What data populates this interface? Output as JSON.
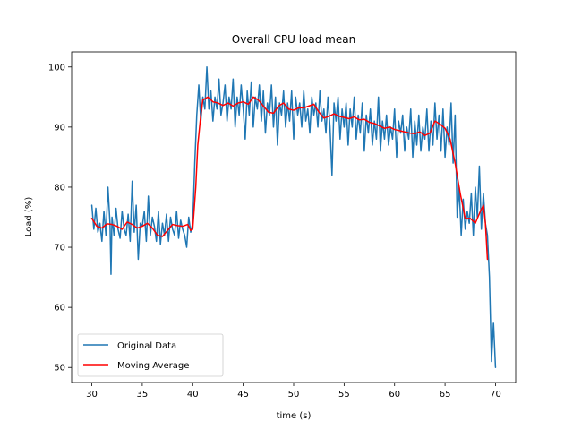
{
  "chart_data": {
    "type": "line",
    "title": "Overall CPU load mean",
    "xlabel": "time (s)",
    "ylabel": "Load (%)",
    "xlim": [
      28.0,
      72.0
    ],
    "ylim": [
      47.5,
      102.5
    ],
    "xticks": [
      30,
      35,
      40,
      45,
      50,
      55,
      60,
      65,
      70
    ],
    "yticks": [
      50,
      60,
      70,
      80,
      90,
      100
    ],
    "grid": false,
    "legend_position": "lower-left",
    "series": [
      {
        "name": "Original Data",
        "color": "#1f77b4",
        "x": [
          30.0,
          30.2,
          30.4,
          30.6,
          30.8,
          31.0,
          31.2,
          31.4,
          31.6,
          31.8,
          31.9,
          32.0,
          32.2,
          32.4,
          32.6,
          32.8,
          33.0,
          33.2,
          33.4,
          33.6,
          33.8,
          34.0,
          34.2,
          34.4,
          34.6,
          34.8,
          35.0,
          35.2,
          35.4,
          35.6,
          35.8,
          36.0,
          36.2,
          36.4,
          36.6,
          36.8,
          37.0,
          37.2,
          37.4,
          37.6,
          37.8,
          38.0,
          38.2,
          38.4,
          38.6,
          38.8,
          39.0,
          39.2,
          39.4,
          39.6,
          39.8,
          40.0,
          40.2,
          40.4,
          40.6,
          40.8,
          41.0,
          41.2,
          41.4,
          41.6,
          41.8,
          42.0,
          42.2,
          42.4,
          42.6,
          42.8,
          43.0,
          43.2,
          43.4,
          43.6,
          43.8,
          44.0,
          44.2,
          44.4,
          44.6,
          44.8,
          45.0,
          45.2,
          45.4,
          45.6,
          45.8,
          46.0,
          46.2,
          46.4,
          46.6,
          46.8,
          47.0,
          47.2,
          47.4,
          47.6,
          47.8,
          48.0,
          48.2,
          48.4,
          48.6,
          48.8,
          49.0,
          49.2,
          49.4,
          49.6,
          49.8,
          50.0,
          50.2,
          50.4,
          50.6,
          50.8,
          51.0,
          51.2,
          51.4,
          51.6,
          51.8,
          52.0,
          52.2,
          52.4,
          52.6,
          52.8,
          53.0,
          53.2,
          53.4,
          53.6,
          53.8,
          54.0,
          54.2,
          54.4,
          54.6,
          54.8,
          55.0,
          55.2,
          55.4,
          55.6,
          55.8,
          56.0,
          56.2,
          56.4,
          56.6,
          56.8,
          57.0,
          57.2,
          57.4,
          57.6,
          57.8,
          58.0,
          58.2,
          58.4,
          58.6,
          58.8,
          59.0,
          59.2,
          59.4,
          59.6,
          59.8,
          60.0,
          60.2,
          60.4,
          60.6,
          60.8,
          61.0,
          61.2,
          61.4,
          61.6,
          61.8,
          62.0,
          62.2,
          62.4,
          62.6,
          62.8,
          63.0,
          63.2,
          63.4,
          63.6,
          63.8,
          64.0,
          64.2,
          64.4,
          64.6,
          64.8,
          65.0,
          65.2,
          65.4,
          65.6,
          65.8,
          66.0,
          66.2,
          66.4,
          66.6,
          66.8,
          67.0,
          67.2,
          67.4,
          67.6,
          67.8,
          68.0,
          68.2,
          68.4,
          68.6,
          68.8,
          69.0,
          69.2,
          69.4,
          69.6,
          69.8,
          70.0
        ],
        "y": [
          77.0,
          73.0,
          76.5,
          72.5,
          74.0,
          71.0,
          76.0,
          72.0,
          80.0,
          74.0,
          65.5,
          75.0,
          72.0,
          76.5,
          73.0,
          71.5,
          76.0,
          73.0,
          72.0,
          75.5,
          71.0,
          81.0,
          72.5,
          77.0,
          68.0,
          74.0,
          73.5,
          76.0,
          71.0,
          78.5,
          72.0,
          75.0,
          73.5,
          71.0,
          76.0,
          70.5,
          74.0,
          72.0,
          75.5,
          71.0,
          75.0,
          73.0,
          72.0,
          76.0,
          71.5,
          74.5,
          73.0,
          72.0,
          70.0,
          75.0,
          72.5,
          74.0,
          84.0,
          92.0,
          97.0,
          91.0,
          95.0,
          93.0,
          100.0,
          93.0,
          96.0,
          91.0,
          95.0,
          93.0,
          98.0,
          92.0,
          94.0,
          97.0,
          91.0,
          95.0,
          93.0,
          98.0,
          90.0,
          95.0,
          92.0,
          97.0,
          93.0,
          88.0,
          96.0,
          92.0,
          97.5,
          90.0,
          95.0,
          93.0,
          97.0,
          91.0,
          96.0,
          89.0,
          94.0,
          92.0,
          97.0,
          90.0,
          95.0,
          87.0,
          94.0,
          92.0,
          96.0,
          90.0,
          94.0,
          91.0,
          96.0,
          88.0,
          95.0,
          92.0,
          94.0,
          90.0,
          96.0,
          91.0,
          93.0,
          89.0,
          95.0,
          92.0,
          94.0,
          90.0,
          96.0,
          91.0,
          93.0,
          89.0,
          95.0,
          90.0,
          82.0,
          94.0,
          91.0,
          95.0,
          88.0,
          93.0,
          90.0,
          94.0,
          87.0,
          93.0,
          90.0,
          95.0,
          88.0,
          92.0,
          89.0,
          94.0,
          86.0,
          92.0,
          89.0,
          93.0,
          87.0,
          91.0,
          88.0,
          95.0,
          86.0,
          91.0,
          88.0,
          92.0,
          87.0,
          90.0,
          88.0,
          93.0,
          85.0,
          91.0,
          89.0,
          92.0,
          86.0,
          90.0,
          88.0,
          93.0,
          85.0,
          91.0,
          87.0,
          92.0,
          86.0,
          90.0,
          88.0,
          93.0,
          86.0,
          91.0,
          87.0,
          94.0,
          88.0,
          92.0,
          86.0,
          93.0,
          85.0,
          90.0,
          87.0,
          94.0,
          84.0,
          92.0,
          75.0,
          80.0,
          72.0,
          78.0,
          73.0,
          76.0,
          74.0,
          79.0,
          72.0,
          80.0,
          75.0,
          83.5,
          73.0,
          79.0,
          74.0,
          72.0,
          65.0,
          51.0,
          57.5,
          50.0
        ]
      },
      {
        "name": "Moving Average",
        "color": "#ff0000",
        "x": [
          30.0,
          30.5,
          31.0,
          31.5,
          32.0,
          32.5,
          33.0,
          33.5,
          34.0,
          34.5,
          35.0,
          35.5,
          36.0,
          36.5,
          37.0,
          37.5,
          38.0,
          38.5,
          39.0,
          39.5,
          39.8,
          40.0,
          40.3,
          40.5,
          40.8,
          41.0,
          41.5,
          42.0,
          42.5,
          43.0,
          43.5,
          44.0,
          44.5,
          45.0,
          45.5,
          46.0,
          46.5,
          47.0,
          47.5,
          48.0,
          48.5,
          49.0,
          49.5,
          50.0,
          50.5,
          51.0,
          51.5,
          52.0,
          52.5,
          53.0,
          53.5,
          54.0,
          54.5,
          55.0,
          55.5,
          56.0,
          56.5,
          57.0,
          57.5,
          58.0,
          58.5,
          59.0,
          59.5,
          60.0,
          60.5,
          61.0,
          61.5,
          62.0,
          62.5,
          63.0,
          63.5,
          64.0,
          64.5,
          65.0,
          65.5,
          66.0,
          66.5,
          67.0,
          67.5,
          68.0,
          68.5,
          68.8,
          69.0,
          69.2
        ],
        "y": [
          74.8,
          73.5,
          73.2,
          73.9,
          73.8,
          73.5,
          73.0,
          74.2,
          73.8,
          73.2,
          73.5,
          74.0,
          73.2,
          72.0,
          71.8,
          72.8,
          73.8,
          73.6,
          73.5,
          73.8,
          72.8,
          73.0,
          80.0,
          87.0,
          92.0,
          94.5,
          95.0,
          94.2,
          94.0,
          93.6,
          94.0,
          93.5,
          94.0,
          94.2,
          93.8,
          95.0,
          94.5,
          93.5,
          92.5,
          92.3,
          93.5,
          94.0,
          93.0,
          92.8,
          93.2,
          93.2,
          93.5,
          93.8,
          92.5,
          91.5,
          91.8,
          92.2,
          91.8,
          91.6,
          91.4,
          91.7,
          91.2,
          91.3,
          90.8,
          90.6,
          90.2,
          89.8,
          90.0,
          89.6,
          89.4,
          89.2,
          89.0,
          88.9,
          89.2,
          88.6,
          89.0,
          91.0,
          90.5,
          89.8,
          88.0,
          84.0,
          79.0,
          74.8,
          74.8,
          74.0,
          76.0,
          77.0,
          74.0,
          68.0
        ]
      }
    ]
  }
}
